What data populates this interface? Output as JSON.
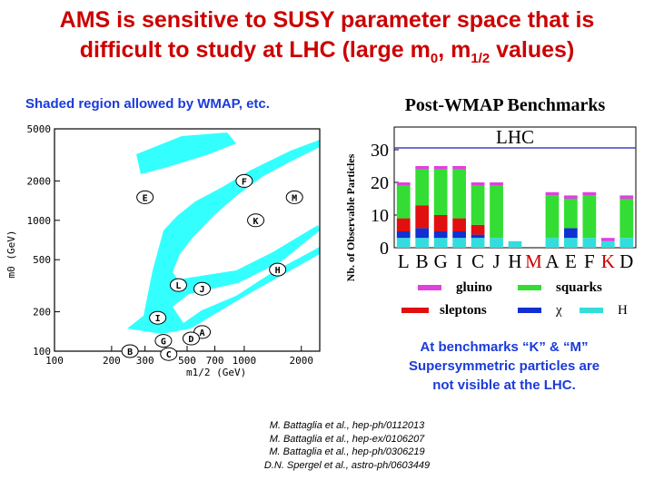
{
  "title": {
    "line1": "AMS is sensitive to SUSY parameter space that is",
    "line2_pre": "difficult to study at LHC (large m",
    "sub0": "0",
    "mid": ", m",
    "sub_half": "1/2",
    "line2_post": " values)"
  },
  "shaded_note": "Shaded region allowed by WMAP, etc.",
  "benchmark_note": {
    "line1": "At benchmarks “K” & “M”",
    "line2": "Supersymmetric particles are",
    "line3": "not visible at the LHC."
  },
  "references": [
    "M. Battaglia et al., hep-ph/0112013",
    "M. Battaglia et al., hep-ex/0106207",
    "M. Battaglia et al., hep-ph/0306219",
    "D.N. Spergel et al., astro-ph/0603449"
  ],
  "colors": {
    "title": "#cc0000",
    "note": "#1a3bd9",
    "region": "#33ffff",
    "gluino": "#e040e0",
    "squarks": "#33dd33",
    "sleptons": "#e01010",
    "chi": "#1030d0",
    "H": "#33dddd"
  },
  "chart_data": [
    {
      "type": "scatter",
      "title": "",
      "xlabel": "m1/2 (GeV)",
      "ylabel": "m0 (GeV)",
      "x_scale": "log",
      "y_scale": "log",
      "xlim": [
        100,
        2500
      ],
      "ylim": [
        100,
        5000
      ],
      "x_ticks": [
        100,
        200,
        300,
        500,
        700,
        1000,
        2000
      ],
      "x_tick_labels": [
        "100",
        "200",
        "300",
        "500",
        "700",
        "1000",
        "2000"
      ],
      "y_ticks": [
        100,
        200,
        500,
        1000,
        2000,
        5000
      ],
      "y_tick_labels": [
        "100",
        "200",
        "500",
        "1000",
        "2000",
        "5000"
      ],
      "region_color": "#33ffff",
      "points": [
        {
          "label": "F",
          "x": 1000,
          "y": 2000
        },
        {
          "label": "E",
          "x": 300,
          "y": 1500
        },
        {
          "label": "M",
          "x": 1840,
          "y": 1500
        },
        {
          "label": "K",
          "x": 1150,
          "y": 1000
        },
        {
          "label": "H",
          "x": 1500,
          "y": 420
        },
        {
          "label": "L",
          "x": 450,
          "y": 320
        },
        {
          "label": "J",
          "x": 600,
          "y": 300
        },
        {
          "label": "I",
          "x": 350,
          "y": 180
        },
        {
          "label": "A",
          "x": 600,
          "y": 140
        },
        {
          "label": "D",
          "x": 525,
          "y": 125
        },
        {
          "label": "G",
          "x": 375,
          "y": 120
        },
        {
          "label": "B",
          "x": 250,
          "y": 100
        },
        {
          "label": "C",
          "x": 400,
          "y": 95
        }
      ]
    },
    {
      "type": "bar",
      "title": "Post-WMAP Benchmarks",
      "annotation": "LHC",
      "xlabel": "",
      "ylabel": "Nb. of Observable Particles",
      "ylim": [
        0,
        35
      ],
      "y_ticks": [
        0,
        10,
        20,
        30
      ],
      "categories": [
        "L",
        "B",
        "G",
        "I",
        "C",
        "J",
        "H",
        "M",
        "A",
        "E",
        "F",
        "K",
        "D"
      ],
      "highlight_categories": [
        "M",
        "K"
      ],
      "series": [
        {
          "name": "H",
          "values": [
            3,
            3,
            3,
            3,
            3,
            3,
            2,
            0,
            3,
            3,
            3,
            2,
            3
          ]
        },
        {
          "name": "χ",
          "values": [
            2,
            3,
            2,
            2,
            1,
            0,
            0,
            0,
            0,
            3,
            0,
            0,
            0
          ]
        },
        {
          "name": "sleptons",
          "values": [
            4,
            7,
            5,
            4,
            3,
            0,
            0,
            0,
            0,
            0,
            0,
            0,
            0
          ]
        },
        {
          "name": "squarks",
          "values": [
            10,
            11,
            14,
            15,
            12,
            16,
            0,
            0,
            13,
            9,
            13,
            0,
            12
          ]
        },
        {
          "name": "gluino",
          "values": [
            1,
            1,
            1,
            1,
            1,
            1,
            0,
            0,
            1,
            1,
            1,
            1,
            1
          ]
        }
      ]
    }
  ]
}
